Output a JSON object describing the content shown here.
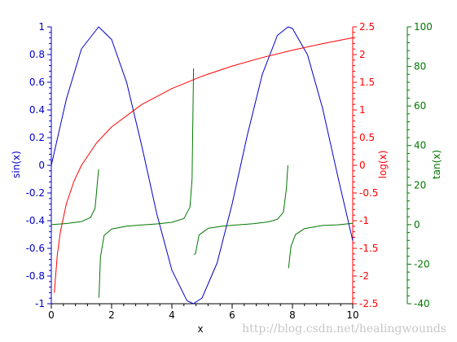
{
  "chart_data": {
    "type": "line",
    "xlabel": "x",
    "xlim": [
      0,
      10
    ],
    "x_ticks": [
      "0",
      "2",
      "4",
      "6",
      "8",
      "10"
    ],
    "grid": false,
    "axes": [
      {
        "name": "sin",
        "label": "sin(x)",
        "side": "left",
        "color": "#0000cc",
        "ylim": [
          -1,
          1
        ],
        "ticks": [
          "-1",
          "-0.8",
          "-0.6",
          "-0.4",
          "-0.2",
          "0",
          "0.2",
          "0.4",
          "0.6",
          "0.8",
          "1"
        ]
      },
      {
        "name": "log",
        "label": "log(x)",
        "side": "right",
        "color": "#ff0000",
        "ylim": [
          -2.5,
          2.5
        ],
        "ticks": [
          "-2.5",
          "-2",
          "-1.5",
          "-1",
          "-0.5",
          "0",
          "0.5",
          "1",
          "1.5",
          "2",
          "2.5"
        ]
      },
      {
        "name": "tan",
        "label": "tan(x)",
        "side": "right-outer",
        "color": "#007700",
        "ylim": [
          -40,
          100
        ],
        "ticks": [
          "-40",
          "-20",
          "0",
          "20",
          "40",
          "60",
          "80",
          "100"
        ]
      }
    ],
    "series": [
      {
        "axis": "sin",
        "color": "#0000cc",
        "x": [
          0,
          0.5,
          1,
          1.5708,
          2,
          2.5,
          3,
          3.5,
          4,
          4.5,
          4.7124,
          5,
          5.5,
          6,
          6.5,
          7,
          7.5,
          7.854,
          8,
          8.5,
          9,
          9.5,
          10
        ],
        "y": [
          0,
          0.479,
          0.841,
          1,
          0.909,
          0.598,
          0.141,
          -0.351,
          -0.757,
          -0.978,
          -1,
          -0.959,
          -0.706,
          -0.279,
          0.215,
          0.657,
          0.938,
          1,
          0.989,
          0.798,
          0.412,
          -0.075,
          -0.544
        ]
      },
      {
        "axis": "log",
        "color": "#ff0000",
        "x": [
          0.1,
          0.2,
          0.3,
          0.5,
          0.75,
          1,
          1.5,
          2,
          3,
          4,
          5,
          6,
          7,
          8,
          9,
          10
        ],
        "y": [
          -2.303,
          -1.609,
          -1.204,
          -0.693,
          -0.288,
          0,
          0.405,
          0.693,
          1.099,
          1.386,
          1.609,
          1.792,
          1.946,
          2.079,
          2.197,
          2.303
        ]
      },
      {
        "axis": "tan",
        "color": "#007700",
        "segments": [
          {
            "x": [
              0,
              0.5,
              1,
              1.3,
              1.45,
              1.52,
              1.57
            ],
            "y": [
              0,
              0.55,
              1.56,
              3.6,
              8.2,
              19.7,
              28
            ]
          },
          {
            "x": [
              1.58,
              1.63,
              1.75,
              2,
              2.5,
              3,
              3.5,
              4,
              4.4,
              4.6,
              4.67,
              4.72
            ],
            "y": [
              -37,
              -16.4,
              -5.5,
              -2.19,
              -0.75,
              -0.14,
              0.37,
              1.16,
              3.1,
              8.86,
              23.2,
              79
            ]
          },
          {
            "x": [
              4.73,
              4.78,
              4.9,
              5.2,
              5.7,
              6.2,
              6.7,
              7.2,
              7.5,
              7.7,
              7.8,
              7.85
            ],
            "y": [
              -15,
              -14.8,
              -5.3,
              -1.89,
              -0.7,
              -0.08,
              0.47,
              1.37,
              2.71,
              6.25,
              18.4,
              30
            ]
          },
          {
            "x": [
              7.87,
              7.95,
              8.1,
              8.4,
              9,
              9.5,
              10
            ],
            "y": [
              -22,
              -11,
              -5.1,
              -2.0,
              -0.45,
              -0.08,
              0.65
            ]
          }
        ]
      }
    ]
  },
  "watermark": "http://blog.csdn.net/healingwounds"
}
